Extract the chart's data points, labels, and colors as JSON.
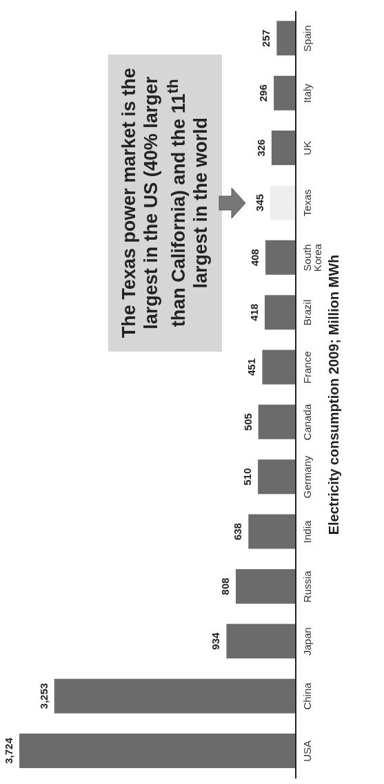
{
  "chart_data": {
    "type": "bar",
    "orientation": "horizontal",
    "ylabel": "Electricity consumption 2009; Million MWh",
    "categories": [
      "Spain",
      "Italy",
      "UK",
      "Texas",
      "South Korea",
      "Brazil",
      "France",
      "Canada",
      "Germany",
      "India",
      "Russia",
      "Japan",
      "China",
      "USA"
    ],
    "values": [
      257,
      296,
      326,
      345,
      408,
      418,
      451,
      505,
      510,
      638,
      808,
      934,
      3253,
      3724
    ],
    "colors": [
      "#6b6b6b",
      "#6b6b6b",
      "#6b6b6b",
      "#eeeeee",
      "#6b6b6b",
      "#6b6b6b",
      "#6b6b6b",
      "#6b6b6b",
      "#6b6b6b",
      "#6b6b6b",
      "#6b6b6b",
      "#6b6b6b",
      "#6b6b6b",
      "#6b6b6b"
    ],
    "data_labels": true,
    "value_labels": [
      "257",
      "296",
      "326",
      "345",
      "408",
      "418",
      "451",
      "505",
      "510",
      "638",
      "808",
      "934",
      "3,253",
      "3,724"
    ],
    "annotations": [
      "The Texas power market is the largest in the US (40% larger than California) and the 11$^{th}$ largest in the world"
    ],
    "grid": false,
    "legend": false
  }
}
